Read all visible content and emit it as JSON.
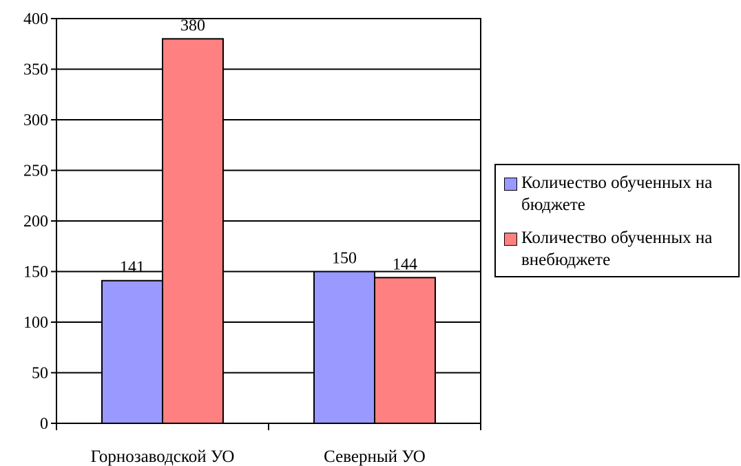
{
  "chart_data": {
    "type": "bar",
    "categories": [
      "Горнозаводской УО",
      "Северный УО"
    ],
    "series": [
      {
        "name": "Количество обученных на бюджете",
        "values": [
          141,
          150
        ],
        "color": "#9999FF"
      },
      {
        "name": "Количество обученных на внебюджете",
        "values": [
          380,
          144
        ],
        "color": "#FF8080"
      }
    ],
    "ylim": [
      0,
      400
    ],
    "yticks": [
      0,
      50,
      100,
      150,
      200,
      250,
      300,
      350,
      400
    ],
    "grid": true,
    "legend_position": "right",
    "data_labels": true,
    "title": "",
    "xlabel": "",
    "ylabel": ""
  }
}
